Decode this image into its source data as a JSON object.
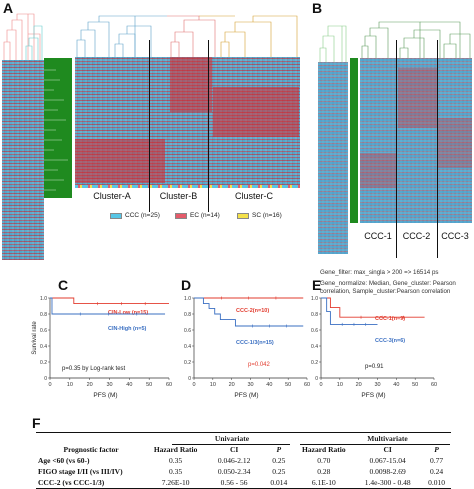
{
  "panels": {
    "a": "A",
    "b": "B",
    "c": "C",
    "d": "D",
    "e": "E",
    "f": "F"
  },
  "panel_a": {
    "clusters": [
      "Cluster-A",
      "Cluster-B",
      "Cluster-C"
    ],
    "legend": [
      {
        "label": "CCC (n=25)",
        "color": "#57c6e6"
      },
      {
        "label": "EC (n=14)",
        "color": "#e45b6a"
      },
      {
        "label": "SC (n=16)",
        "color": "#f4e14a"
      }
    ]
  },
  "panel_b": {
    "clusters": [
      "CCC-1",
      "CCC-2",
      "CCC-3"
    ],
    "gene_filter": "Gene_filter: max_singla > 200 => 16514 ps",
    "gene_normalize": "Gene_normalize: Median, Gene_cluster: Pearson",
    "correlation": "correlation, Sample_cluster:Pearson correlation"
  },
  "panel_c": {
    "y_axis_label": "Survival  rate",
    "x_axis_label": "PFS (M)",
    "y_ticks": [
      "1.0",
      "0.8",
      "0.6",
      "0.4",
      "0.2",
      "0"
    ],
    "x_ticks": [
      "0",
      "10",
      "20",
      "30",
      "40",
      "50",
      "60"
    ],
    "series": [
      {
        "name": "CIN-Low (n=15)",
        "color": "#e23b2e"
      },
      {
        "name": "CIN-High (n=5)",
        "color": "#3a6fc2"
      }
    ],
    "p_value": "p=0.35 by Log-rank test"
  },
  "panel_d": {
    "x_axis_label": "PFS (M)",
    "y_ticks": [
      "1.0",
      "0.8",
      "0.6",
      "0.4",
      "0.2",
      "0"
    ],
    "x_ticks": [
      "0",
      "10",
      "20",
      "30",
      "40",
      "50",
      "60"
    ],
    "series": [
      {
        "name": "CCC-2(n=10)",
        "color": "#e23b2e"
      },
      {
        "name": "CCC-1/3(n=15)",
        "color": "#3a6fc2"
      }
    ],
    "p_value": "p=0.042"
  },
  "panel_e": {
    "x_axis_label": "PFS (M)",
    "y_ticks": [
      "1.0",
      "0.8",
      "0.6",
      "0.4",
      "0.2",
      "0"
    ],
    "x_ticks": [
      "0",
      "10",
      "20",
      "30",
      "40",
      "50",
      "60"
    ],
    "series": [
      {
        "name": "CCC-1(n=9)",
        "color": "#e23b2e"
      },
      {
        "name": "CCC-3(n=6)",
        "color": "#3a6fc2"
      }
    ],
    "p_value": "p=0.91"
  },
  "table": {
    "col_group_1": "Univariate",
    "col_group_2": "Multivariate",
    "prognostic_header": "Prognostic factor",
    "sub_headers": [
      "Hazard Ratio",
      "CI",
      "P",
      "Hazard Ratio",
      "CI",
      "P"
    ],
    "rows": [
      {
        "factor": "Age <60 (vs 60-)",
        "cells": [
          "0.35",
          "0.046-2.12",
          "0.25",
          "0.70",
          "0.067-15.04",
          "0.77"
        ]
      },
      {
        "factor": "FIGO stage I/II (vs III/IV)",
        "cells": [
          "0.35",
          "0.050-2.34",
          "0.25",
          "0.28",
          "0.0098-2.69",
          "0.24"
        ]
      },
      {
        "factor": "CCC-2 (vs CCC-1/3)",
        "cells": [
          "7.26E-10",
          "0.56 - 56",
          "0.014",
          "6.1E-10",
          "1.4e-300 - 0.48",
          "0.010"
        ]
      }
    ]
  },
  "chart_data": [
    {
      "type": "line",
      "title": "",
      "xlabel": "PFS (M)",
      "ylabel": "Survival rate",
      "xlim": [
        0,
        60
      ],
      "ylim": [
        0,
        1.0
      ],
      "series": [
        {
          "name": "CIN-Low (n=15)",
          "x": [
            0,
            12,
            60
          ],
          "y": [
            1.0,
            0.93,
            0.93
          ]
        },
        {
          "name": "CIN-High (n=5)",
          "x": [
            0,
            1,
            58
          ],
          "y": [
            1.0,
            0.8,
            0.8
          ]
        }
      ],
      "annotation": "p=0.35 by Log-rank test"
    },
    {
      "type": "line",
      "title": "",
      "xlabel": "PFS (M)",
      "ylabel": "",
      "xlim": [
        0,
        60
      ],
      "ylim": [
        0,
        1.0
      ],
      "series": [
        {
          "name": "CCC-2(n=10)",
          "x": [
            0,
            58
          ],
          "y": [
            1.0,
            1.0
          ]
        },
        {
          "name": "CCC-1/3(n=15)",
          "x": [
            0,
            5,
            8,
            11,
            14,
            22,
            58
          ],
          "y": [
            1.0,
            0.93,
            0.87,
            0.8,
            0.73,
            0.65,
            0.65
          ]
        }
      ],
      "annotation": "p=0.042"
    },
    {
      "type": "line",
      "title": "",
      "xlabel": "PFS (M)",
      "ylabel": "",
      "xlim": [
        0,
        60
      ],
      "ylim": [
        0,
        1.0
      ],
      "series": [
        {
          "name": "CCC-1(n=9)",
          "x": [
            0,
            5,
            10,
            55
          ],
          "y": [
            1.0,
            0.88,
            0.76,
            0.76
          ]
        },
        {
          "name": "CCC-3(n=6)",
          "x": [
            0,
            3,
            5,
            30
          ],
          "y": [
            1.0,
            0.83,
            0.67,
            0.67
          ]
        }
      ],
      "annotation": "p=0.91"
    }
  ]
}
